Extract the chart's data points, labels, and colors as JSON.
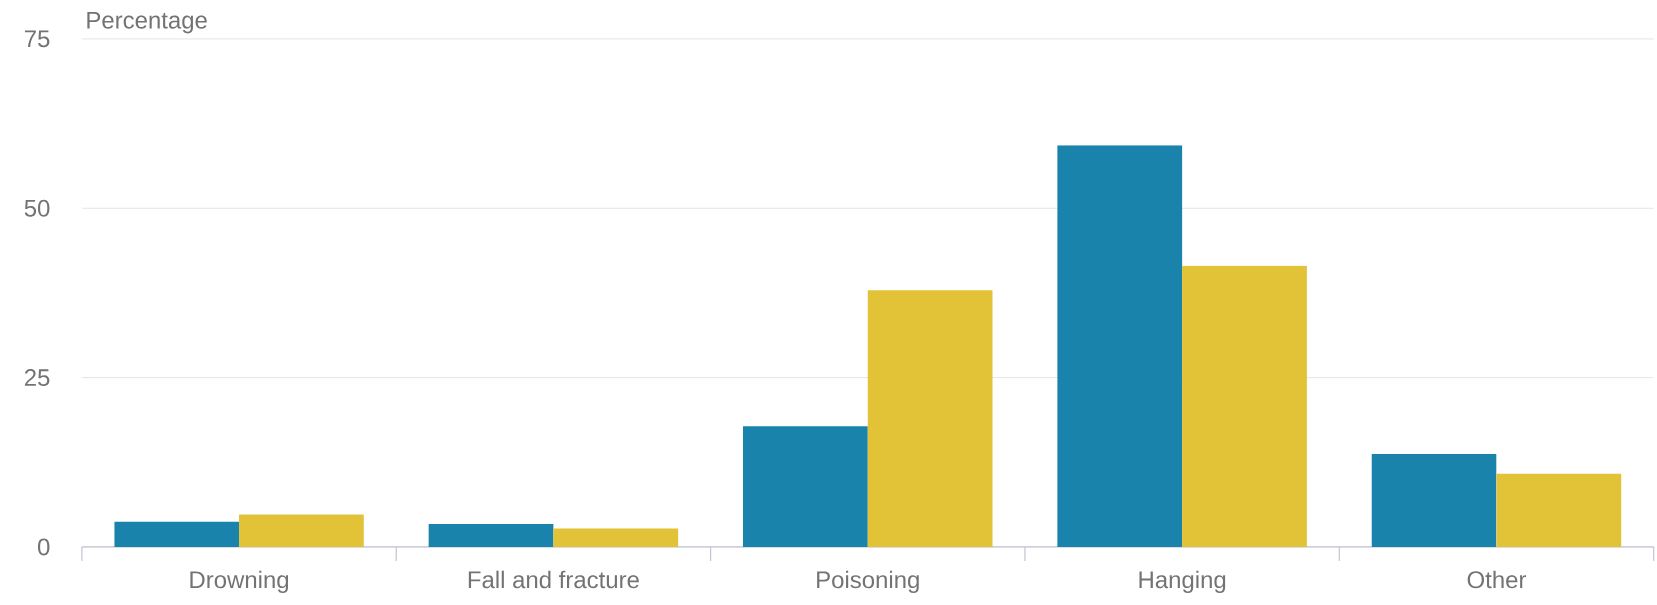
{
  "chart_data": {
    "type": "bar",
    "ylabel": "Percentage",
    "categories": [
      "Drowning",
      "Fall and fracture",
      "Poisoning",
      "Hanging",
      "Other"
    ],
    "series": [
      {
        "color": "#1a83ab",
        "values": [
          3.7,
          3.4,
          17.8,
          59.3,
          13.7
        ]
      },
      {
        "color": "#e2c237",
        "values": [
          4.8,
          2.7,
          37.9,
          41.5,
          10.8
        ]
      }
    ],
    "ylim": [
      0,
      75
    ],
    "yticks": [
      0,
      25,
      50,
      75
    ],
    "grid": "y"
  }
}
